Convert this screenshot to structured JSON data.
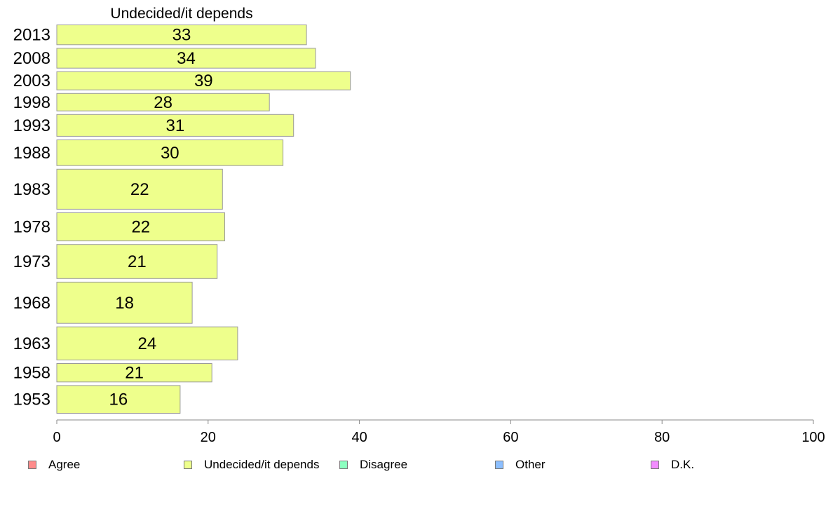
{
  "chart_data": {
    "type": "bar",
    "orientation": "horizontal",
    "title": "Undecided/it depends",
    "categories": [
      "2013",
      "2008",
      "2003",
      "1998",
      "1993",
      "1988",
      "1983",
      "1978",
      "1973",
      "1968",
      "1963",
      "1958",
      "1953"
    ],
    "values": [
      33,
      34,
      39,
      28,
      31,
      30,
      22,
      22,
      21,
      18,
      24,
      21,
      16
    ],
    "exact_values": [
      33.0,
      34.2,
      38.8,
      28.1,
      31.3,
      29.9,
      21.9,
      22.2,
      21.2,
      17.9,
      23.9,
      20.5,
      16.3
    ],
    "relative_bar_heights": [
      1,
      1,
      0.92,
      0.88,
      1.1,
      1.3,
      2.02,
      1.42,
      1.72,
      2.08,
      1.67,
      0.93,
      1.4
    ],
    "xlim": [
      0,
      100
    ],
    "xticks": [
      0,
      20,
      40,
      60,
      80,
      100
    ],
    "bar_color": "#eeff8c",
    "bar_border_color": "#9a9a9a",
    "grid": false
  },
  "legend": [
    {
      "label": "Agree",
      "color": "#ff8c8c"
    },
    {
      "label": "Undecided/it depends",
      "color": "#eeff8c"
    },
    {
      "label": "Disagree",
      "color": "#8cffc0"
    },
    {
      "label": "Other",
      "color": "#8cbfff"
    },
    {
      "label": "D.K.",
      "color": "#f28cff"
    }
  ]
}
